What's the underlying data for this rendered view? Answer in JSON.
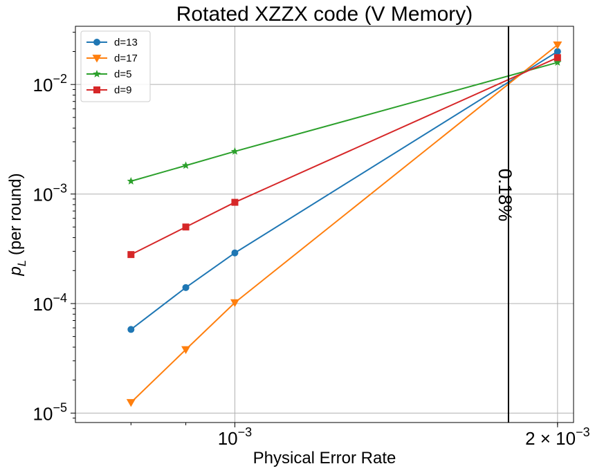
{
  "chart_data": {
    "type": "line",
    "title": "Rotated XZZX code (V Memory)",
    "xlabel": "Physical Error Rate",
    "ylabel_main": "p",
    "ylabel_sub": "L",
    "ylabel_rest": " (per round)",
    "xscale": "log",
    "yscale": "log",
    "xlim": [
      0.00071,
      0.00207
    ],
    "ylim": [
      8.2e-06,
      0.034
    ],
    "grid": true,
    "legend_position": "top-left",
    "x_tick_labels": [
      {
        "value": 0.001,
        "base": "10",
        "exp": "−3"
      },
      {
        "value": 0.002,
        "base": "2 × 10",
        "exp": "−3"
      }
    ],
    "y_tick_labels": [
      {
        "value": 1e-05,
        "base": "10",
        "exp": "−5"
      },
      {
        "value": 0.0001,
        "base": "10",
        "exp": "−4"
      },
      {
        "value": 0.001,
        "base": "10",
        "exp": "−3"
      },
      {
        "value": 0.01,
        "base": "10",
        "exp": "−2"
      }
    ],
    "x_minor_ticks": [
      0.0008,
      0.0009,
      0.002
    ],
    "threshold": {
      "x": 0.0018,
      "label": "0.18%"
    },
    "series": [
      {
        "name": "d=13",
        "color": "#1f77b4",
        "marker": "circle",
        "x": [
          0.0008,
          0.0009,
          0.001,
          0.002
        ],
        "y": [
          5.8e-05,
          0.00014,
          0.00029,
          0.02
        ]
      },
      {
        "name": "d=17",
        "color": "#ff7f0e",
        "marker": "triangle-down",
        "x": [
          0.0008,
          0.0009,
          0.001,
          0.002
        ],
        "y": [
          1.25e-05,
          3.8e-05,
          0.000102,
          0.023
        ]
      },
      {
        "name": "d=5",
        "color": "#2ca02c",
        "marker": "star",
        "x": [
          0.0008,
          0.0009,
          0.001,
          0.002
        ],
        "y": [
          0.00131,
          0.00182,
          0.00245,
          0.0159
        ]
      },
      {
        "name": "d=9",
        "color": "#d62728",
        "marker": "square",
        "x": [
          0.0008,
          0.0009,
          0.001,
          0.002
        ],
        "y": [
          0.00028,
          0.0005,
          0.00084,
          0.0176
        ]
      }
    ]
  }
}
